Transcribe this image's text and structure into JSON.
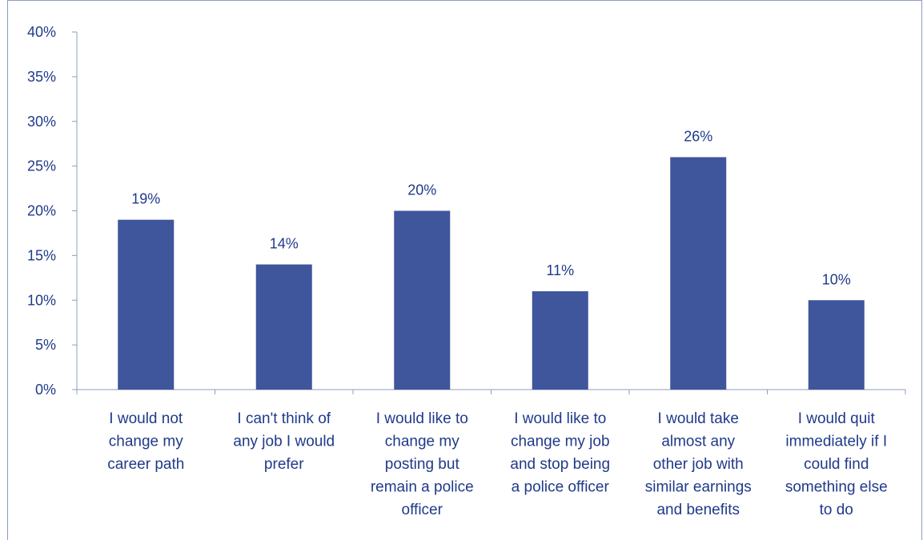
{
  "chart_data": {
    "type": "bar",
    "categories": [
      [
        "I would not",
        "change my",
        "career path"
      ],
      [
        "I can't think of",
        "any job I would",
        "prefer"
      ],
      [
        "I would like to",
        "change my",
        "posting but",
        "remain a police",
        "officer"
      ],
      [
        "I would like to",
        "change my job",
        "and stop being",
        "a police officer"
      ],
      [
        "I would take",
        "almost any",
        "other job with",
        "similar earnings",
        "and benefits"
      ],
      [
        "I would quit",
        "immediately if I",
        "could find",
        "something else",
        "to do"
      ]
    ],
    "values": [
      19,
      14,
      20,
      11,
      26,
      10
    ],
    "value_labels": [
      "19%",
      "14%",
      "20%",
      "11%",
      "26%",
      "10%"
    ],
    "ylim": [
      0,
      40
    ],
    "yticks": [
      0,
      5,
      10,
      15,
      20,
      25,
      30,
      35,
      40
    ],
    "ytick_labels": [
      "0%",
      "5%",
      "10%",
      "15%",
      "20%",
      "25%",
      "30%",
      "35%",
      "40%"
    ],
    "title": "",
    "xlabel": "",
    "ylabel": "",
    "grid": false,
    "colors": {
      "bar": "#3f559c",
      "text": "#1f3a8a",
      "axis": "#8e9cc2"
    }
  }
}
